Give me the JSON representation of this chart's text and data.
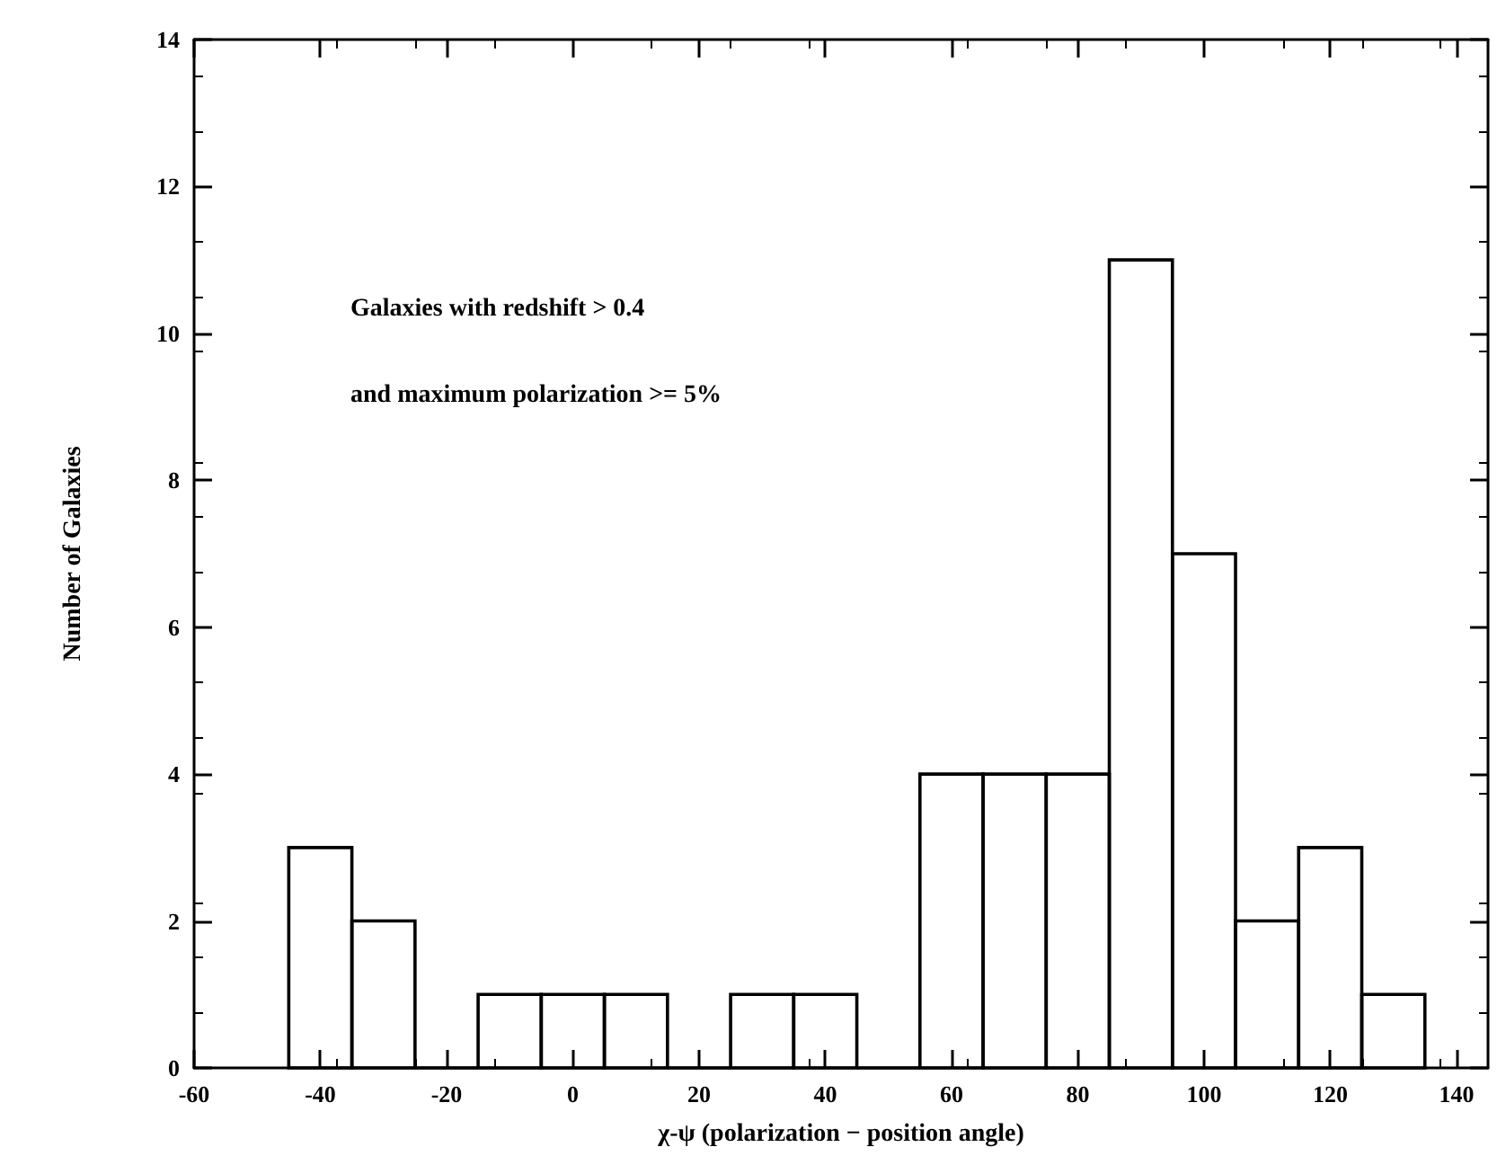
{
  "chart_data": {
    "type": "histogram",
    "xlabel": "χ-ψ (polarization − position angle)",
    "ylabel": "Number of Galaxies",
    "annotations": [
      "Galaxies with redshift > 0.4",
      "and maximum polarization >= 5%"
    ],
    "bins": [
      -45,
      -35,
      -25,
      -15,
      -5,
      5,
      15,
      25,
      35,
      45,
      55,
      65,
      75,
      85,
      95,
      105,
      115,
      125,
      135
    ],
    "values": [
      3,
      2,
      0,
      1,
      1,
      1,
      0,
      1,
      1,
      0,
      4,
      4,
      4,
      11,
      7,
      2,
      3,
      1
    ],
    "color": "#000000",
    "xlim": [
      -60,
      145
    ],
    "xticks": [
      -60,
      -40,
      -20,
      0,
      20,
      40,
      60,
      80,
      100,
      120,
      140
    ],
    "ylim": [
      0,
      14
    ],
    "yticks": [
      0,
      2,
      4,
      6,
      8,
      10,
      12,
      14
    ],
    "grid": false
  }
}
